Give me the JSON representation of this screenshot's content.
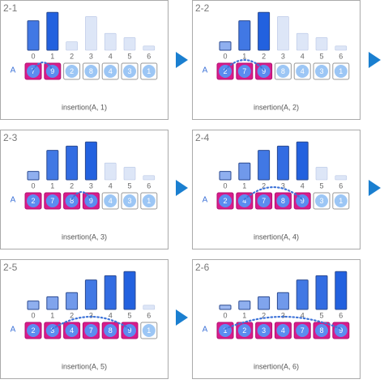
{
  "panels": [
    {
      "label": "2-1",
      "indices": [
        0,
        1,
        2,
        3,
        4,
        5,
        6
      ],
      "array_label": "A",
      "values": [
        7,
        9,
        2,
        8,
        4,
        3,
        1
      ],
      "caption": "insertion(A, 1)"
    },
    {
      "label": "2-2",
      "indices": [
        0,
        1,
        2,
        3,
        4,
        5,
        6
      ],
      "array_label": "A",
      "values": [
        2,
        7,
        9,
        8,
        4,
        3,
        1
      ],
      "caption": "insertion(A, 2)"
    },
    {
      "label": "2-3",
      "indices": [
        0,
        1,
        2,
        3,
        4,
        5,
        6
      ],
      "array_label": "A",
      "values": [
        2,
        7,
        8,
        9,
        4,
        3,
        1
      ],
      "caption": "insertion(A, 3)"
    },
    {
      "label": "2-4",
      "indices": [
        0,
        1,
        2,
        3,
        4,
        5,
        6
      ],
      "array_label": "A",
      "values": [
        2,
        4,
        7,
        8,
        9,
        3,
        1
      ],
      "caption": "insertion(A, 4)"
    },
    {
      "label": "2-5",
      "indices": [
        0,
        1,
        2,
        3,
        4,
        5,
        6
      ],
      "array_label": "A",
      "values": [
        2,
        3,
        4,
        7,
        8,
        9,
        1
      ],
      "caption": "insertion(A, 5)"
    },
    {
      "label": "2-6",
      "indices": [
        0,
        1,
        2,
        3,
        4,
        5,
        6
      ],
      "array_label": "A",
      "values": [
        1,
        2,
        3,
        4,
        7,
        8,
        9
      ],
      "caption": "insertion(A, 6)"
    }
  ]
}
